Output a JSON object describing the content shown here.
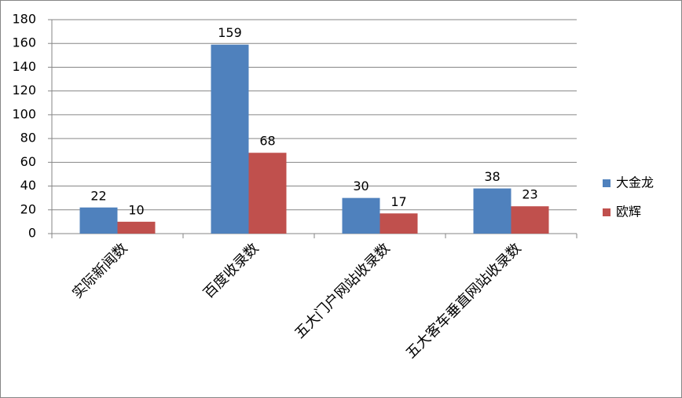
{
  "chart_data": {
    "type": "bar",
    "categories": [
      "实际新闻数",
      "百度收录数",
      "五大门户网站收录数",
      "五大客车垂直网站收录数"
    ],
    "series": [
      {
        "name": "大金龙",
        "color": "#4f81bd",
        "values": [
          22,
          159,
          30,
          38
        ]
      },
      {
        "name": "欧辉",
        "color": "#c0504d",
        "values": [
          10,
          68,
          17,
          23
        ]
      }
    ],
    "ylim": [
      0,
      180
    ],
    "yticks": [
      0,
      20,
      40,
      60,
      80,
      100,
      120,
      140,
      160,
      180
    ],
    "grid": true,
    "legend": "right",
    "data_labels": true
  }
}
